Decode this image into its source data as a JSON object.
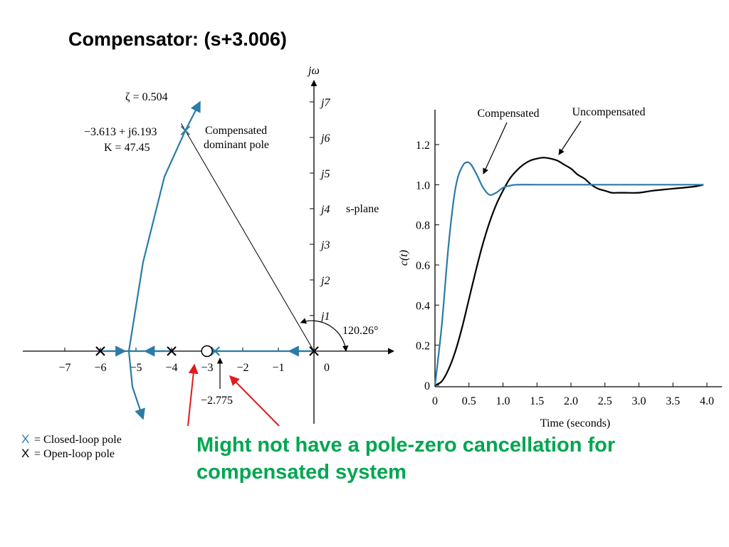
{
  "slide": {
    "title": "Compensator: (s+3.006)",
    "note": "Might not have a pole-zero cancellation for compensated system"
  },
  "colors": {
    "compensated": "#2a7ba6",
    "uncompensated": "#000000",
    "note": "#00a650",
    "arrow": "#e01b1b"
  },
  "root_locus": {
    "axis_label_imag": "jω",
    "plane_label": "s-plane",
    "zeta_label": "ζ = 0.504",
    "angle_label": "120.26°",
    "pole_label": [
      "−3.613 + j6.193",
      "K = 47.45"
    ],
    "pole_desc": [
      "Compensated",
      "dominant pole"
    ],
    "zero_crossing_label": "−2.775",
    "legend": [
      {
        "marker": "X",
        "text": "= Closed-loop pole",
        "color": "#2a7ba6"
      },
      {
        "marker": "X",
        "text": "= Open-loop pole",
        "color": "#000000"
      }
    ]
  },
  "chart_data": [
    {
      "type": "scatter",
      "title": "",
      "xlabel": "",
      "ylabel": "jω",
      "xlim": [
        -7.5,
        1.5
      ],
      "ylim": [
        -2,
        7.5
      ],
      "x_ticks": [
        -7,
        -6,
        -5,
        -4,
        -3,
        -2,
        -1,
        0
      ],
      "x_tick_labels": [
        "−7",
        "−6",
        "−5",
        "−4",
        "−3",
        "−2",
        "−1",
        "0"
      ],
      "y_ticks": [
        1,
        2,
        3,
        4,
        5,
        6,
        7
      ],
      "y_tick_labels": [
        "j1",
        "j2",
        "j3",
        "j4",
        "j5",
        "j6",
        "j7"
      ],
      "open_loop_poles": [
        [
          0,
          0
        ],
        [
          -4,
          0
        ],
        [
          -6,
          0
        ]
      ],
      "zeros": [
        [
          -3.006,
          0
        ]
      ],
      "closed_loop_poles": [
        [
          -2.775,
          0
        ],
        [
          -3.613,
          6.193
        ]
      ],
      "branches": [
        {
          "name": "upper",
          "points": [
            [
              -5.2,
              0
            ],
            [
              -4.8,
              2.5
            ],
            [
              -4.2,
              4.9
            ],
            [
              -3.613,
              6.193
            ],
            [
              -3.2,
              7.0
            ]
          ]
        },
        {
          "name": "lower",
          "points": [
            [
              -5.2,
              0
            ],
            [
              -5.1,
              -1.0
            ],
            [
              -4.8,
              -1.9
            ]
          ]
        }
      ],
      "zeta_line": {
        "zeta": 0.504,
        "angle_deg": 120.26
      }
    },
    {
      "type": "line",
      "title": "",
      "xlabel": "Time (seconds)",
      "ylabel": "c(t)",
      "xlim": [
        0,
        4.0
      ],
      "ylim": [
        0,
        1.3
      ],
      "x_ticks": [
        0,
        0.5,
        1.0,
        1.5,
        2.0,
        2.5,
        3.0,
        3.5,
        4.0
      ],
      "x_tick_labels": [
        "0",
        "0.5",
        "1.0",
        "1.5",
        "2.0",
        "2.5",
        "3.0",
        "3.5",
        "4.0"
      ],
      "y_ticks": [
        0,
        0.2,
        0.4,
        0.6,
        0.8,
        1.0,
        1.2
      ],
      "y_tick_labels": [
        "0",
        "0.2",
        "0.4",
        "0.6",
        "0.8",
        "1.0",
        "1.2"
      ],
      "series": [
        {
          "name": "Compensated",
          "x": [
            0,
            0.1,
            0.2,
            0.3,
            0.4,
            0.5,
            0.6,
            0.7,
            0.8,
            0.9,
            1.0,
            1.1,
            1.2,
            1.5,
            2.0,
            2.5,
            3.0,
            3.5,
            3.95
          ],
          "y": [
            0,
            0.3,
            0.7,
            0.98,
            1.09,
            1.11,
            1.06,
            0.99,
            0.95,
            0.96,
            0.985,
            0.995,
            1.0,
            1.0,
            1.0,
            1.0,
            1.0,
            1.0,
            1.0
          ]
        },
        {
          "name": "Uncompensated",
          "x": [
            0,
            0.1,
            0.2,
            0.3,
            0.4,
            0.5,
            0.6,
            0.7,
            0.8,
            0.9,
            1.0,
            1.1,
            1.2,
            1.3,
            1.4,
            1.5,
            1.6,
            1.7,
            1.8,
            1.9,
            2.0,
            2.1,
            2.2,
            2.3,
            2.4,
            2.5,
            2.6,
            2.7,
            2.8,
            3.0,
            3.2,
            3.5,
            3.8,
            3.95
          ],
          "y": [
            0,
            0.02,
            0.08,
            0.17,
            0.29,
            0.43,
            0.57,
            0.7,
            0.81,
            0.9,
            0.97,
            1.03,
            1.07,
            1.1,
            1.12,
            1.13,
            1.135,
            1.13,
            1.12,
            1.1,
            1.08,
            1.05,
            1.03,
            1.0,
            0.98,
            0.97,
            0.96,
            0.96,
            0.96,
            0.96,
            0.97,
            0.98,
            0.99,
            1.0
          ]
        }
      ],
      "annotations": [
        "Compensated",
        "Uncompensated"
      ]
    }
  ]
}
